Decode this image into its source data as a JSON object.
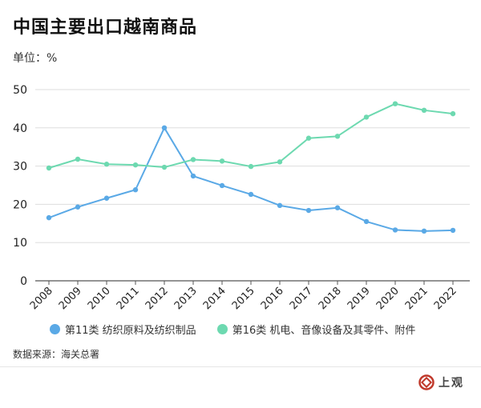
{
  "title": "中国主要出口越南商品",
  "unit_label": "单位：%",
  "source": "数据来源：海关总署",
  "logo": {
    "text": "上观",
    "icon": "shanghai-observer-logo-icon"
  },
  "colors": {
    "series1": "#5AA9E6",
    "series2": "#6DD9B0",
    "grid": "#dddddd",
    "axis": "#555555"
  },
  "chart_data": {
    "type": "line",
    "title": "中国主要出口越南商品",
    "xlabel": "",
    "ylabel": "单位：%",
    "ylim": [
      0,
      50
    ],
    "yticks": [
      0,
      10,
      20,
      30,
      40,
      50
    ],
    "grid": true,
    "legend": "bottom",
    "x": [
      "2008",
      "2009",
      "2010",
      "2011",
      "2012",
      "2013",
      "2014",
      "2015",
      "2016",
      "2017",
      "2018",
      "2019",
      "2020",
      "2021",
      "2022"
    ],
    "series": [
      {
        "name": "第11类 纺织原料及纺织制品",
        "color": "#5AA9E6",
        "values": [
          16.5,
          19.3,
          21.6,
          23.8,
          40.0,
          27.4,
          24.9,
          22.6,
          19.7,
          18.4,
          19.1,
          15.5,
          13.3,
          13.0,
          13.2
        ]
      },
      {
        "name": "第16类 机电、音像设备及其零件、附件",
        "color": "#6DD9B0",
        "values": [
          29.5,
          31.8,
          30.5,
          30.3,
          29.7,
          31.7,
          31.3,
          29.9,
          31.1,
          37.3,
          37.8,
          42.8,
          46.3,
          44.6,
          43.7
        ]
      }
    ]
  }
}
